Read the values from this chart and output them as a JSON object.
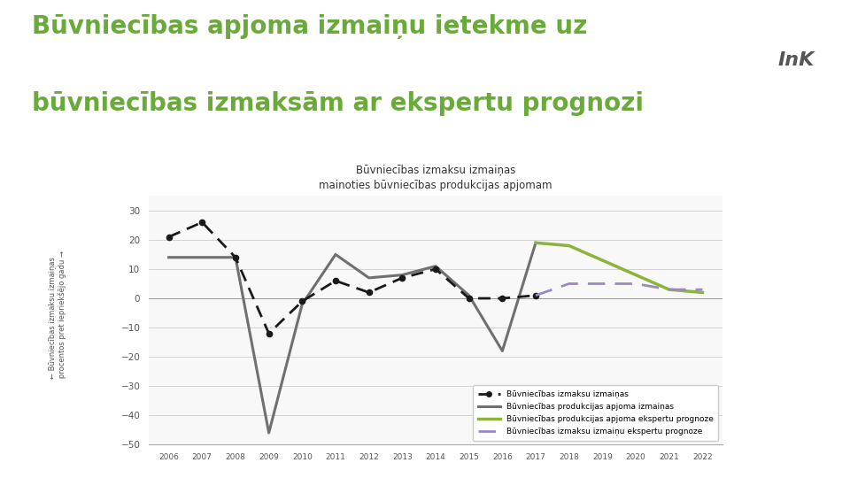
{
  "main_title_line1": "Būvniecības apjoma izmaiņu ietekme uz",
  "main_title_line2": "būvniecības izmaksām ar ekspertu prognozi",
  "main_title_color": "#6aaa3a",
  "chart_title_line1": "Būvniecības izmaksu izmaiņas",
  "chart_title_line2": "mainoties būvniecības produkcijas apjomam",
  "years_dashed": [
    2006,
    2007,
    2008,
    2009,
    2010,
    2011,
    2012,
    2013,
    2014,
    2015,
    2016,
    2017
  ],
  "values_dashed": [
    21,
    26,
    14,
    -12,
    -1,
    6,
    2,
    7,
    10,
    0,
    0,
    1
  ],
  "years_solid": [
    2006,
    2007,
    2008,
    2009,
    2010,
    2011,
    2012,
    2013,
    2014,
    2015,
    2016,
    2017
  ],
  "values_solid": [
    14,
    14,
    14,
    -46,
    -2,
    15,
    7,
    8,
    11,
    1,
    -18,
    19
  ],
  "years_green": [
    2017,
    2018,
    2019,
    2020,
    2021,
    2022
  ],
  "values_green": [
    19,
    18,
    13,
    8,
    3,
    2
  ],
  "years_purple": [
    2017,
    2018,
    2019,
    2020,
    2021,
    2022
  ],
  "values_purple": [
    1,
    5,
    5,
    5,
    3,
    3
  ],
  "ylim": [
    -50,
    35
  ],
  "yticks": [
    -50,
    -40,
    -30,
    -20,
    -10,
    0,
    10,
    20,
    30
  ],
  "dashed_color": "#1a1a1a",
  "solid_color": "#707070",
  "green_color": "#8db33a",
  "purple_color": "#9b87c6",
  "legend_labels": [
    "Būvniecības izmaksu izmaiņas",
    "Būvniecības produkcijas apjoma izmaiņas",
    "Būvniecības produkcijas apjoma ekspertu prognoze",
    "Būvniecības izmaksu izmaiņu ekspertu prognoze"
  ],
  "background_color": "#ffffff",
  "left_bar_color": "#8db33a",
  "right_panel_color": "#d8e8c0",
  "ink_text": "InK",
  "ink_color": "#555555"
}
